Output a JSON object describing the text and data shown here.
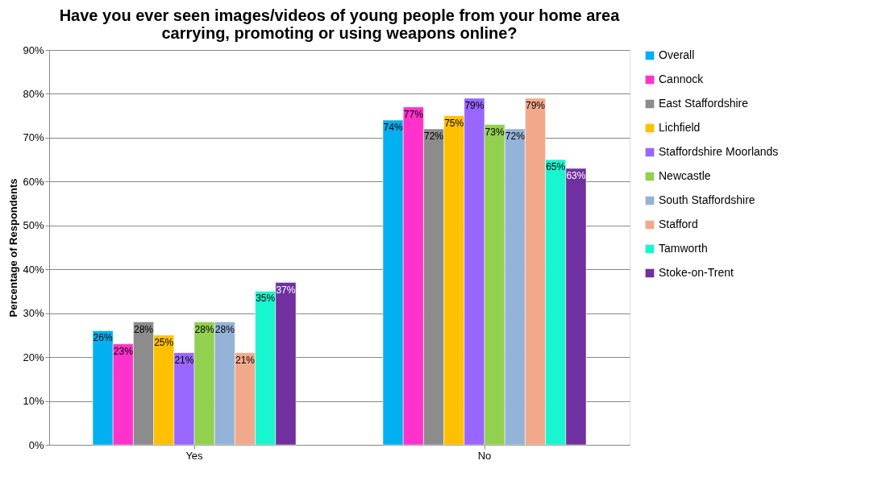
{
  "chart_data": {
    "type": "bar",
    "title": "Have you ever seen images/videos of young people from your home area\ncarrying, promoting or using weapons online?",
    "ylabel": "Percentage of Respondents",
    "categories": [
      "Yes",
      "No"
    ],
    "series": [
      {
        "name": "Overall",
        "color": "#00b0f0",
        "values": [
          26,
          74
        ],
        "value_labels": [
          "26%",
          "74%"
        ]
      },
      {
        "name": "Cannock",
        "color": "#ff33cc",
        "values": [
          23,
          77
        ],
        "value_labels": [
          "23%",
          "77%"
        ]
      },
      {
        "name": "East Staffordshire",
        "color": "#8c8c8c",
        "values": [
          28,
          72
        ],
        "value_labels": [
          "28%",
          "72%"
        ]
      },
      {
        "name": "Lichfield",
        "color": "#ffc000",
        "values": [
          25,
          75
        ],
        "value_labels": [
          "25%",
          "75%"
        ]
      },
      {
        "name": "Staffordshire Moorlands",
        "color": "#9966ff",
        "values": [
          21,
          79
        ],
        "value_labels": [
          "21%",
          "79%"
        ]
      },
      {
        "name": "Newcastle",
        "color": "#92d050",
        "values": [
          28,
          73
        ],
        "value_labels": [
          "28%",
          "73%"
        ]
      },
      {
        "name": "South Staffordshire",
        "color": "#95b3d7",
        "values": [
          28,
          72
        ],
        "value_labels": [
          "28%",
          "72%"
        ]
      },
      {
        "name": "Stafford",
        "color": "#f2a98b",
        "values": [
          21,
          79
        ],
        "value_labels": [
          "21%",
          "79%"
        ]
      },
      {
        "name": "Tamworth",
        "color": "#19f5d0",
        "values": [
          35,
          65
        ],
        "value_labels": [
          "35%",
          "65%"
        ]
      },
      {
        "name": "Stoke-on-Trent",
        "color": "#7030a0",
        "values": [
          37,
          63
        ],
        "value_labels": [
          "37%",
          "63%"
        ]
      }
    ],
    "ylim": [
      0,
      90
    ],
    "yticks": [
      {
        "value": 0,
        "label": "0%"
      },
      {
        "value": 10,
        "label": "10%"
      },
      {
        "value": 20,
        "label": "20%"
      },
      {
        "value": 30,
        "label": "30%"
      },
      {
        "value": 40,
        "label": "40%"
      },
      {
        "value": 50,
        "label": "50%"
      },
      {
        "value": 60,
        "label": "60%"
      },
      {
        "value": 70,
        "label": "70%"
      },
      {
        "value": 80,
        "label": "80%"
      },
      {
        "value": 90,
        "label": "90%"
      }
    ],
    "grid": "y",
    "legend": "right"
  }
}
